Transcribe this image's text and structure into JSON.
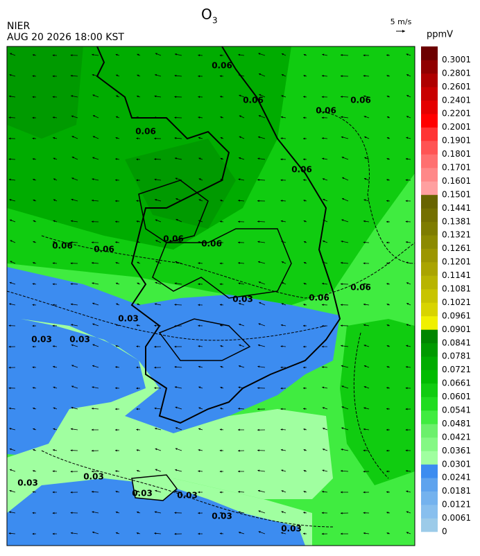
{
  "header": {
    "title": "O",
    "title_sub": "3",
    "agency": "NIER",
    "datetime": "AUG 20 2026 18:00 KST",
    "wind_scale": "5 m/s"
  },
  "colorbar": {
    "unit": "ppmV",
    "ticks": [
      0,
      0.0061,
      0.0121,
      0.0181,
      0.0241,
      0.0301,
      0.0361,
      0.0421,
      0.0481,
      0.0541,
      0.0601,
      0.0661,
      0.0721,
      0.0781,
      0.0841,
      0.0901,
      0.0961,
      0.1021,
      0.1081,
      0.1141,
      0.1201,
      0.1261,
      0.1321,
      0.1381,
      0.1441,
      0.1501,
      0.1601,
      0.1701,
      0.1801,
      0.1901,
      0.2001,
      0.2201,
      0.2401,
      0.2601,
      0.2801,
      0.3001
    ],
    "colors": [
      "#9ccbe9",
      "#88bfee",
      "#74b2ee",
      "#5ea3ee",
      "#3c8cf0",
      "#a0ffa0",
      "#84f884",
      "#6cf06c",
      "#40ec40",
      "#20dc20",
      "#10cc10",
      "#00bc00",
      "#00ac00",
      "#009a00",
      "#008600",
      "#f0f000",
      "#d8d400",
      "#c8c400",
      "#b8b400",
      "#aaa400",
      "#9c9600",
      "#8c8a00",
      "#7e7c00",
      "#747000",
      "#686400",
      "#ffa0a0",
      "#ff8888",
      "#ff7070",
      "#ff5454",
      "#ff3434",
      "#ff0000",
      "#e40000",
      "#c80000",
      "#ae0000",
      "#900000",
      "#6c0000"
    ]
  },
  "contour_labels": [
    "0.06",
    "0.06",
    "0.06",
    "0.06",
    "0.06",
    "0.06",
    "0.06",
    "0.06",
    "0.06",
    "0.06",
    "0.06",
    "0.06",
    "0.03",
    "0.03",
    "0.03",
    "0.03",
    "0.03",
    "0.03",
    "0.03",
    "0.03",
    "0.03",
    "0.03"
  ]
}
